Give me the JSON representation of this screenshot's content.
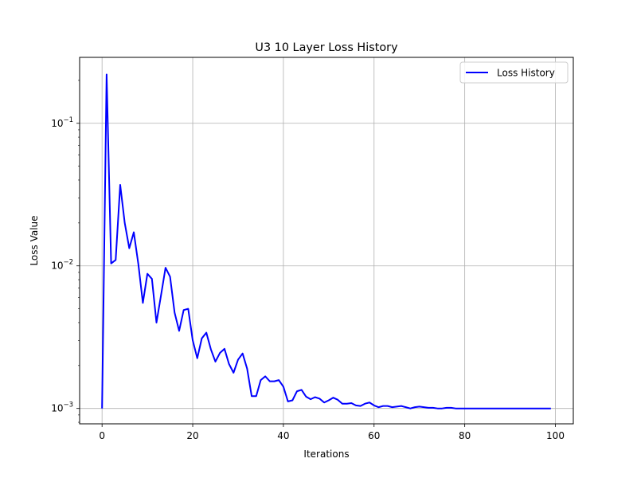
{
  "chart_data": {
    "type": "line",
    "title": "U3 10 Layer Loss History",
    "xlabel": "Iterations",
    "ylabel": "Loss Value",
    "yscale": "log",
    "xlim": [
      -4.95,
      103.95
    ],
    "ylim": [
      0.00078,
      0.29
    ],
    "x_ticks": [
      0,
      20,
      40,
      60,
      80,
      100
    ],
    "x_tick_labels": [
      "0",
      "20",
      "40",
      "60",
      "80",
      "100"
    ],
    "y_ticks": [
      0.001,
      0.01,
      0.1
    ],
    "y_tick_labels": [
      {
        "base": "10",
        "exp": "−3"
      },
      {
        "base": "10",
        "exp": "−2"
      },
      {
        "base": "10",
        "exp": "−1"
      }
    ],
    "grid": true,
    "legend_position": "upper-right",
    "series": [
      {
        "name": "Loss History",
        "color": "#0000ff",
        "x": [
          0,
          1,
          2,
          3,
          4,
          5,
          6,
          7,
          8,
          9,
          10,
          11,
          12,
          13,
          14,
          15,
          16,
          17,
          18,
          19,
          20,
          21,
          22,
          23,
          24,
          25,
          26,
          27,
          28,
          29,
          30,
          31,
          32,
          33,
          34,
          35,
          36,
          37,
          38,
          39,
          40,
          41,
          42,
          43,
          44,
          45,
          46,
          47,
          48,
          49,
          50,
          51,
          52,
          53,
          54,
          55,
          56,
          57,
          58,
          59,
          60,
          61,
          62,
          63,
          64,
          65,
          66,
          67,
          68,
          69,
          70,
          71,
          72,
          73,
          74,
          75,
          76,
          77,
          78,
          79,
          80,
          81,
          82,
          83,
          84,
          85,
          86,
          87,
          88,
          89,
          90,
          91,
          92,
          93,
          94,
          95,
          96,
          97,
          98,
          99
        ],
        "values": [
          0.001,
          0.22,
          0.0104,
          0.011,
          0.037,
          0.02,
          0.0133,
          0.0172,
          0.0103,
          0.0055,
          0.0088,
          0.0081,
          0.004,
          0.0062,
          0.0097,
          0.0084,
          0.0047,
          0.0035,
          0.0049,
          0.005,
          0.003,
          0.00225,
          0.0031,
          0.0034,
          0.0026,
          0.00213,
          0.00245,
          0.00262,
          0.00205,
          0.00178,
          0.0022,
          0.00243,
          0.0019,
          0.00122,
          0.00122,
          0.00158,
          0.00168,
          0.00155,
          0.00155,
          0.00158,
          0.00142,
          0.00112,
          0.00114,
          0.00132,
          0.00135,
          0.00121,
          0.00116,
          0.0012,
          0.00117,
          0.0011,
          0.00114,
          0.00119,
          0.00115,
          0.00108,
          0.00108,
          0.00109,
          0.00105,
          0.00104,
          0.00108,
          0.0011,
          0.00105,
          0.00102,
          0.00104,
          0.00104,
          0.00102,
          0.00103,
          0.00104,
          0.00102,
          0.001,
          0.00102,
          0.00103,
          0.00102,
          0.00101,
          0.00101,
          0.001,
          0.001,
          0.00101,
          0.00101,
          0.001,
          0.001,
          0.001,
          0.001,
          0.001,
          0.001,
          0.001,
          0.001,
          0.001,
          0.001,
          0.001,
          0.001,
          0.001,
          0.001,
          0.001,
          0.001,
          0.001,
          0.001,
          0.001,
          0.001,
          0.001,
          0.001
        ]
      }
    ]
  }
}
